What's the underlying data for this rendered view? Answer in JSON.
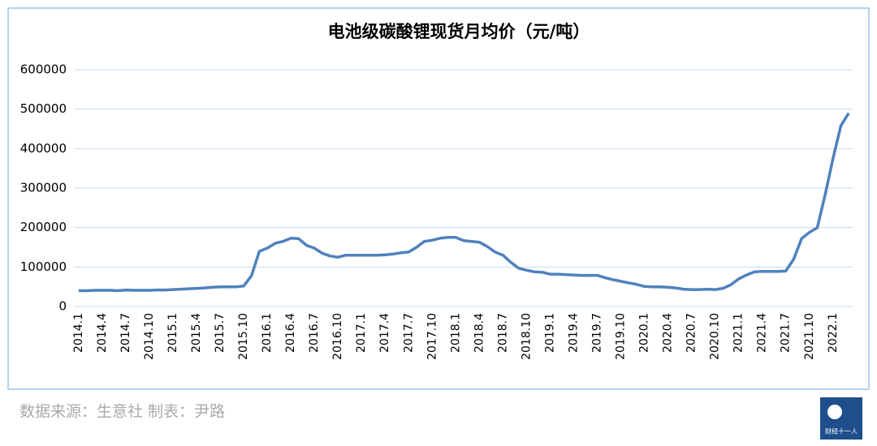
{
  "chart_data": {
    "type": "line",
    "title": "电池级碳酸锂现货月均价（元/吨）",
    "categories": [
      "2014.1",
      null,
      null,
      "2014.4",
      null,
      null,
      "2014.7",
      null,
      null,
      "2014.10",
      null,
      null,
      "2015.1",
      null,
      null,
      "2015.4",
      null,
      null,
      "2015.7",
      null,
      null,
      "2015.10",
      null,
      null,
      "2016.1",
      null,
      null,
      "2016.4",
      null,
      null,
      "2016.7",
      null,
      null,
      "2016.10",
      null,
      null,
      "2017.1",
      null,
      null,
      "2017.4",
      null,
      null,
      "2017.7",
      null,
      null,
      "2017.10",
      null,
      null,
      "2018.1",
      null,
      null,
      "2018.4",
      null,
      null,
      "2018.7",
      null,
      null,
      "2018.10",
      null,
      null,
      "2019.1",
      null,
      null,
      "2019.4",
      null,
      null,
      "2019.7",
      null,
      null,
      "2019.10",
      null,
      null,
      "2020.1",
      null,
      null,
      "2020.4",
      null,
      null,
      "2020.7",
      null,
      null,
      "2020.10",
      null,
      null,
      "2021.1",
      null,
      null,
      "2021.4",
      null,
      null,
      "2021.7",
      null,
      null,
      "2021.10",
      null,
      null,
      "2022.1",
      null,
      null
    ],
    "series": [
      {
        "name": "电池级碳酸锂现货月均价",
        "color": "#4f81bd",
        "values": [
          40000,
          40000,
          41000,
          41000,
          41000,
          40000,
          42000,
          41000,
          41000,
          41000,
          42000,
          42000,
          43000,
          44000,
          45000,
          46000,
          47000,
          49000,
          50000,
          50000,
          50000,
          52000,
          78000,
          140000,
          148000,
          160000,
          165000,
          173000,
          172000,
          155000,
          148000,
          135000,
          128000,
          125000,
          130000,
          130000,
          130000,
          130000,
          130000,
          131000,
          133000,
          136000,
          138000,
          150000,
          165000,
          168000,
          173000,
          175000,
          175000,
          167000,
          165000,
          163000,
          152000,
          138000,
          130000,
          112000,
          97000,
          92000,
          88000,
          87000,
          82000,
          82000,
          81000,
          80000,
          79000,
          79000,
          79000,
          73000,
          68000,
          64000,
          60000,
          56000,
          51000,
          50000,
          50000,
          49000,
          47000,
          44000,
          43000,
          43000,
          44000,
          43000,
          46000,
          55000,
          70000,
          80000,
          88000,
          89000,
          89000,
          89000,
          90000,
          120000,
          172000,
          188000,
          200000,
          283000,
          375000,
          458000,
          490000
        ]
      }
    ],
    "ylim": [
      0,
      600000
    ],
    "yticks": [
      0,
      100000,
      200000,
      300000,
      400000,
      500000,
      600000
    ],
    "grid": true
  },
  "footer": {
    "source": "数据来源：生意社 制表：尹路",
    "logo": "财经十一人"
  }
}
